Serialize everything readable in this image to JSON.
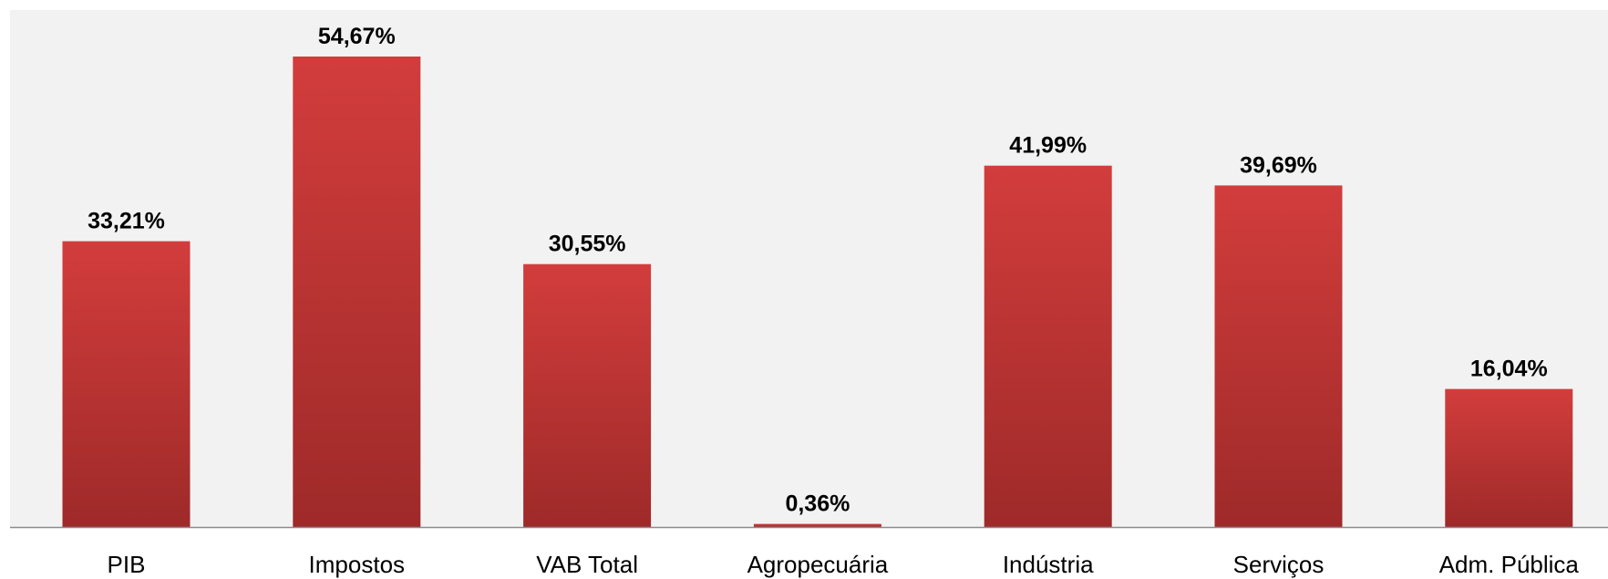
{
  "chart_data": {
    "type": "bar",
    "categories": [
      "PIB",
      "Impostos",
      "VAB Total",
      "Agropecuária",
      "Indústria",
      "Serviços",
      "Adm. Pública"
    ],
    "values": [
      33.21,
      54.67,
      30.55,
      0.36,
      41.99,
      39.69,
      16.04
    ],
    "value_labels": [
      "33,21%",
      "54,67%",
      "30,55%",
      "0,36%",
      "41,99%",
      "39,69%",
      "16,04%"
    ],
    "color": "#c83838"
  }
}
